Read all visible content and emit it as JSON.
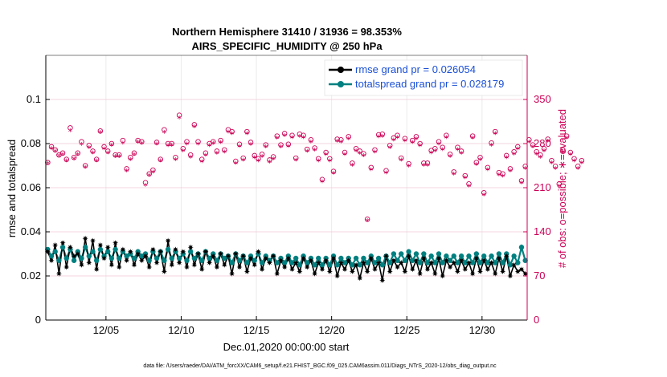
{
  "chart_data": {
    "type": "line",
    "title": "Northern Hemisphere 31410 / 31936 = 98.353%",
    "subtitle": "AIRS_SPECIFIC_HUMIDITY @ 250 hPa",
    "xlabel": "Dec.01,2020 00:00:00 start",
    "ylabel": "rmse and totalspread",
    "y2label": "# of obs: o=possible; ∗=evaluated",
    "xlim": [
      0,
      32
    ],
    "ylim": [
      0,
      0.12
    ],
    "y2lim": [
      0,
      420
    ],
    "x_ticks": [
      4,
      9,
      14,
      19,
      24,
      29
    ],
    "x_tick_labels": [
      "12/05",
      "12/10",
      "12/15",
      "12/20",
      "12/25",
      "12/30"
    ],
    "y_ticks": [
      0,
      0.02,
      0.04,
      0.06,
      0.08,
      0.1
    ],
    "y_tick_labels": [
      "0",
      "0.02",
      "0.04",
      "0.06",
      "0.08",
      "0.1"
    ],
    "y2_ticks": [
      0,
      70,
      140,
      210,
      280,
      350
    ],
    "y2_tick_labels": [
      "0",
      "70",
      "140",
      "210",
      "280",
      "350"
    ],
    "grid": true,
    "legend_position": "top-right",
    "footer": "data file: /Users/raeder/DAI/ATM_forcXX/CAM6_setup/f.e21.FHIST_BGC.f09_025.CAM6assim.011/Diags_NTrS_2020-12/obs_diag_output.nc",
    "colors": {
      "rmse": "#000000",
      "totalspread": "#008080",
      "obs": "#cc0055",
      "legend_text": "#1a4fd6"
    },
    "series": [
      {
        "name": "rmse grand pr = 0.026054",
        "color": "#000000",
        "marker": "star",
        "x_start": 0.125,
        "x_step": 0.25,
        "values": [
          0.031,
          0.027,
          0.034,
          0.021,
          0.035,
          0.024,
          0.033,
          0.029,
          0.03,
          0.025,
          0.037,
          0.026,
          0.036,
          0.023,
          0.034,
          0.028,
          0.033,
          0.025,
          0.035,
          0.024,
          0.032,
          0.027,
          0.031,
          0.025,
          0.03,
          0.027,
          0.029,
          0.024,
          0.032,
          0.026,
          0.031,
          0.022,
          0.036,
          0.025,
          0.032,
          0.026,
          0.031,
          0.024,
          0.033,
          0.025,
          0.03,
          0.023,
          0.031,
          0.026,
          0.029,
          0.024,
          0.03,
          0.025,
          0.029,
          0.021,
          0.03,
          0.024,
          0.029,
          0.022,
          0.028,
          0.025,
          0.031,
          0.023,
          0.028,
          0.026,
          0.029,
          0.021,
          0.027,
          0.024,
          0.028,
          0.023,
          0.026,
          0.022,
          0.028,
          0.024,
          0.027,
          0.021,
          0.026,
          0.023,
          0.027,
          0.022,
          0.028,
          0.02,
          0.026,
          0.023,
          0.027,
          0.022,
          0.025,
          0.019,
          0.026,
          0.022,
          0.028,
          0.023,
          0.026,
          0.018,
          0.029,
          0.022,
          0.027,
          0.024,
          0.026,
          0.022,
          0.029,
          0.023,
          0.027,
          0.021,
          0.028,
          0.023,
          0.026,
          0.021,
          0.028,
          0.02,
          0.027,
          0.024,
          0.026,
          0.022,
          0.027,
          0.023,
          0.026,
          0.021,
          0.028,
          0.022,
          0.027,
          0.023,
          0.026,
          0.021,
          0.028,
          0.022,
          0.029,
          0.02,
          0.025,
          0.022,
          0.023,
          0.021
        ]
      },
      {
        "name": "totalspread grand pr = 0.028179",
        "color": "#008080",
        "marker": "circle",
        "x_start": 0.125,
        "x_step": 0.25,
        "values": [
          0.032,
          0.029,
          0.031,
          0.027,
          0.033,
          0.028,
          0.032,
          0.027,
          0.031,
          0.028,
          0.033,
          0.029,
          0.031,
          0.027,
          0.032,
          0.029,
          0.031,
          0.028,
          0.032,
          0.028,
          0.031,
          0.029,
          0.03,
          0.028,
          0.031,
          0.029,
          0.03,
          0.027,
          0.031,
          0.028,
          0.031,
          0.027,
          0.032,
          0.028,
          0.031,
          0.028,
          0.03,
          0.027,
          0.031,
          0.028,
          0.03,
          0.027,
          0.031,
          0.028,
          0.03,
          0.027,
          0.03,
          0.028,
          0.029,
          0.026,
          0.03,
          0.027,
          0.029,
          0.026,
          0.029,
          0.027,
          0.03,
          0.026,
          0.029,
          0.027,
          0.029,
          0.026,
          0.028,
          0.026,
          0.029,
          0.026,
          0.028,
          0.025,
          0.029,
          0.026,
          0.028,
          0.025,
          0.028,
          0.025,
          0.028,
          0.025,
          0.029,
          0.025,
          0.028,
          0.026,
          0.028,
          0.025,
          0.028,
          0.025,
          0.028,
          0.026,
          0.029,
          0.026,
          0.028,
          0.025,
          0.029,
          0.026,
          0.03,
          0.027,
          0.03,
          0.027,
          0.031,
          0.027,
          0.03,
          0.026,
          0.03,
          0.026,
          0.029,
          0.026,
          0.03,
          0.026,
          0.029,
          0.027,
          0.029,
          0.026,
          0.029,
          0.026,
          0.029,
          0.026,
          0.03,
          0.026,
          0.029,
          0.026,
          0.029,
          0.026,
          0.03,
          0.026,
          0.03,
          0.025,
          0.029,
          0.026,
          0.033,
          0.027
        ]
      }
    ],
    "obs_possible": {
      "marker": "circle-open",
      "color": "#cc0055",
      "x_start": 0.125,
      "x_step": 0.25,
      "values": [
        250,
        275,
        270,
        262,
        265,
        255,
        305,
        258,
        265,
        283,
        245,
        277,
        268,
        255,
        300,
        275,
        268,
        280,
        262,
        262,
        285,
        240,
        258,
        265,
        285,
        283,
        218,
        232,
        238,
        282,
        255,
        302,
        280,
        280,
        258,
        325,
        272,
        283,
        262,
        310,
        283,
        255,
        265,
        280,
        283,
        268,
        285,
        270,
        302,
        299,
        252,
        279,
        257,
        299,
        282,
        261,
        256,
        263,
        278,
        254,
        259,
        292,
        278,
        296,
        279,
        293,
        257,
        295,
        293,
        271,
        286,
        273,
        256,
        223,
        266,
        256,
        236,
        287,
        286,
        266,
        291,
        249,
        272,
        268,
        264,
        160,
        242,
        270,
        294,
        295,
        237,
        277,
        289,
        293,
        257,
        288,
        248,
        285,
        291,
        280,
        249,
        249,
        269,
        272,
        283,
        274,
        293,
        263,
        235,
        274,
        268,
        229,
        216,
        292,
        250,
        258,
        202,
        242,
        281,
        299,
        234,
        232,
        261,
        240,
        267,
        275,
        221,
        244,
        286,
        278,
        267,
        262,
        272,
        287,
        253,
        244,
        216,
        270,
        292,
        266,
        256,
        244,
        253
      ]
    },
    "obs_evaluated": {
      "marker": "asterisk",
      "color": "#cc0055",
      "x_start": 0.125,
      "x_step": 0.25,
      "values": [
        248,
        272,
        267,
        260,
        262,
        252,
        300,
        255,
        262,
        278,
        242,
        273,
        265,
        252,
        297,
        271,
        265,
        277,
        259,
        259,
        280,
        236,
        254,
        262,
        282,
        280,
        213,
        229,
        234,
        279,
        252,
        297,
        276,
        277,
        254,
        320,
        268,
        279,
        258,
        306,
        279,
        251,
        261,
        276,
        280,
        264,
        281,
        266,
        298,
        295,
        248,
        275,
        253,
        295,
        278,
        257,
        252,
        259,
        274,
        250,
        255,
        288,
        274,
        292,
        275,
        289,
        253,
        291,
        289,
        267,
        282,
        269,
        252,
        219,
        262,
        252,
        232,
        283,
        282,
        262,
        287,
        245,
        268,
        264,
        260,
        157,
        238,
        266,
        290,
        291,
        233,
        273,
        285,
        289,
        253,
        284,
        244,
        281,
        287,
        276,
        245,
        245,
        265,
        268,
        279,
        270,
        289,
        259,
        231,
        270,
        264,
        225,
        212,
        288,
        246,
        254,
        198,
        238,
        277,
        295,
        230,
        228,
        257,
        236,
        263,
        271,
        217,
        240,
        282,
        274,
        263,
        258,
        268,
        283,
        249,
        240,
        212,
        266,
        288,
        262,
        252,
        240,
        249
      ]
    }
  }
}
